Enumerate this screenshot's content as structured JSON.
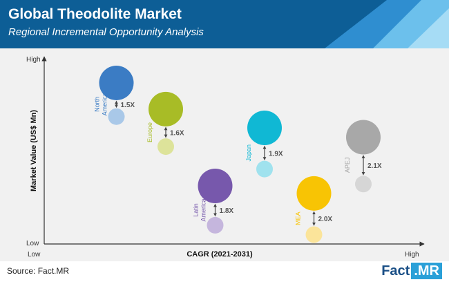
{
  "header": {
    "title": "Global Theodolite Market",
    "subtitle": "Regional Incremental Opportunity Analysis"
  },
  "footer": {
    "source": "Source: Fact.MR",
    "logo_text": "Fact",
    "logo_suffix": ".MR"
  },
  "chart_data": {
    "type": "bubble",
    "xlabel": "CAGR (2021-2031)",
    "ylabel": "Market Value (US$ Mn)",
    "x_ticks": [
      "Low",
      "High"
    ],
    "y_ticks": [
      "Low",
      "High"
    ],
    "grid": false,
    "series": [
      {
        "name": "North America",
        "label_lines": [
          "North",
          "America"
        ],
        "multiplier": "1.5X",
        "color_big": "#3b7cc4",
        "color_small": "#a9c8e8",
        "x_rel": 0.19,
        "y_rel_big": 0.86,
        "y_rel_small": 0.68
      },
      {
        "name": "Europe",
        "label_lines": [
          "Europe"
        ],
        "multiplier": "1.6X",
        "color_big": "#a8bc26",
        "color_small": "#dde39a",
        "x_rel": 0.32,
        "y_rel_big": 0.72,
        "y_rel_small": 0.52
      },
      {
        "name": "Latin America",
        "label_lines": [
          "Latin",
          "America"
        ],
        "multiplier": "1.8X",
        "color_big": "#7758ac",
        "color_small": "#c5b6dd",
        "x_rel": 0.45,
        "y_rel_big": 0.31,
        "y_rel_small": 0.1
      },
      {
        "name": "Japan",
        "label_lines": [
          "Japan"
        ],
        "multiplier": "1.9X",
        "color_big": "#10b8d4",
        "color_small": "#a0e2ee",
        "x_rel": 0.58,
        "y_rel_big": 0.62,
        "y_rel_small": 0.4
      },
      {
        "name": "MEA",
        "label_lines": [
          "MEA"
        ],
        "multiplier": "2.0X",
        "color_big": "#f8c404",
        "color_small": "#fbe49a",
        "x_rel": 0.71,
        "y_rel_big": 0.27,
        "y_rel_small": 0.05
      },
      {
        "name": "APEJ",
        "label_lines": [
          "APEJ"
        ],
        "multiplier": "2.1X",
        "color_big": "#a8a8a8",
        "color_small": "#d6d6d6",
        "x_rel": 0.84,
        "y_rel_big": 0.57,
        "y_rel_small": 0.32
      }
    ]
  }
}
